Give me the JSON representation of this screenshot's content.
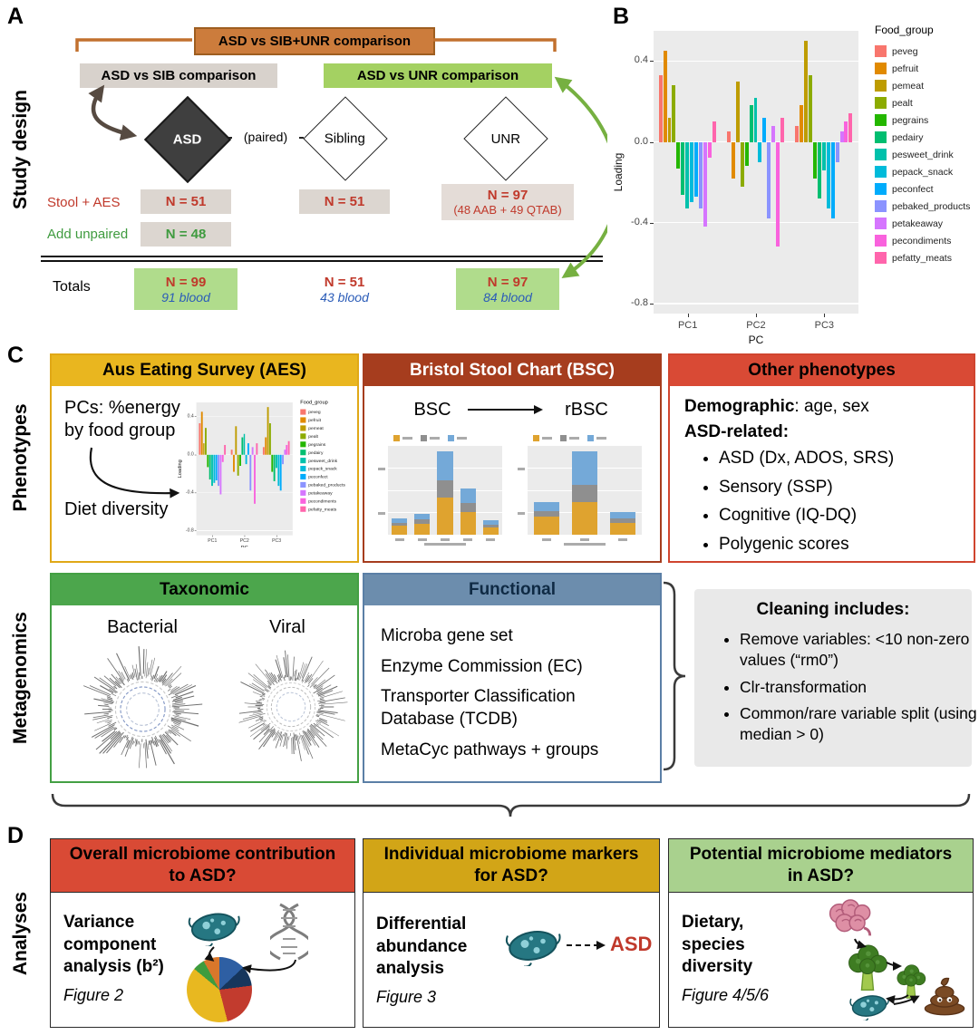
{
  "colors": {
    "red_accent": "#C0392B",
    "blue_accent": "#2B5CB8",
    "green_accent": "#3F9B3F",
    "orange_banner": "#CC7C3C",
    "gray_banner": "#D8D2CC",
    "green_banner": "#A4D162",
    "light_green_box": "#B0DC8C",
    "light_gray_box": "#DCD6D0",
    "aes_gold": "#E9B61F",
    "bsc_brick": "#A63D1E",
    "phenotype_red": "#D94A35",
    "taxonomic_green": "#4CA64C",
    "functional_blue": "#6C8DAD",
    "markers_gold": "#D2A517",
    "mediators_green": "#A9D18E"
  },
  "panelA": {
    "label": "A",
    "side_label": "Study design",
    "banner_top": "ASD vs SIB+UNR comparison",
    "banner_sib": "ASD vs SIB comparison",
    "banner_unr": "ASD vs UNR comparison",
    "node_asd": "ASD",
    "node_sib": "Sibling",
    "node_unr": "UNR",
    "paired": "(paired)",
    "row_stool": {
      "label": "Stool + AES",
      "asd": "N = 51",
      "sib": "N = 51",
      "unr_line1": "N = 97",
      "unr_line2": "(48 AAB + 49 QTAB)"
    },
    "row_unpaired": {
      "label": "Add unpaired",
      "asd": "N = 48"
    },
    "row_totals": {
      "label": "Totals",
      "asd_n": "N = 99",
      "asd_blood": "91 blood",
      "sib_n": "N = 51",
      "sib_blood": "43 blood",
      "unr_n": "N = 97",
      "unr_blood": "84 blood"
    }
  },
  "panelB": {
    "label": "B"
  },
  "panelC": {
    "label": "C",
    "side_label_top": "Phenotypes",
    "side_label_bottom": "Metagenomics",
    "aes": {
      "header": "Aus Eating Survey (AES)",
      "line1": "PCs: %energy by food group",
      "line2": "Diet diversity"
    },
    "bsc": {
      "header": "Bristol Stool Chart (BSC)",
      "left_label": "BSC",
      "right_label": "rBSC"
    },
    "other": {
      "header": "Other phenotypes",
      "demographic_bold": "Demographic",
      "demographic_rest": ": age, sex",
      "asd_related": "ASD-related:",
      "bullets": [
        "ASD (Dx, ADOS, SRS)",
        "Sensory (SSP)",
        "Cognitive (IQ-DQ)",
        "Polygenic scores"
      ]
    },
    "taxonomic": {
      "header": "Taxonomic",
      "left_label": "Bacterial",
      "right_label": "Viral"
    },
    "functional": {
      "header": "Functional",
      "lines": [
        "Microba gene set",
        "Enzyme Commission (EC)",
        "Transporter Classification Database (TCDB)",
        "MetaCyc pathways + groups"
      ]
    },
    "cleaning": {
      "title": "Cleaning includes:",
      "bullets": [
        "Remove variables: <10 non-zero values (“rm0”)",
        "Clr-transformation",
        "Common/rare variable split (using median > 0)"
      ]
    }
  },
  "panelD": {
    "label": "D",
    "side_label": "Analyses",
    "box1": {
      "header": "Overall microbiome contribution to ASD?",
      "body": "Variance component analysis (b²)",
      "figure": "Figure 2"
    },
    "box2": {
      "header": "Individual microbiome markers for ASD?",
      "body": "Differential abundance analysis",
      "figure": "Figure 3",
      "asd": "ASD"
    },
    "box3": {
      "header": "Potential microbiome mediators in ASD?",
      "body": "Dietary, species diversity",
      "figure": "Figure 4/5/6"
    }
  },
  "chart_data": [
    {
      "id": "food_group_loadings",
      "type": "bar",
      "title": "",
      "ylabel": "Loading",
      "xlabel": "PC",
      "categories": [
        "PC1",
        "PC2",
        "PC3"
      ],
      "ylim": [
        -0.85,
        0.55
      ],
      "yticks": [
        0.4,
        0.0,
        -0.4,
        -0.8
      ],
      "legend_title": "Food_group",
      "legend_position": "right",
      "plot_bg": "#EBEBEB",
      "series": [
        {
          "name": "peveg",
          "color": "#F8766D",
          "values": [
            0.33,
            0.05,
            0.08
          ]
        },
        {
          "name": "pefruit",
          "color": "#E18A00",
          "values": [
            0.45,
            -0.18,
            0.18
          ]
        },
        {
          "name": "pemeat",
          "color": "#BE9C00",
          "values": [
            0.12,
            0.3,
            0.5
          ]
        },
        {
          "name": "pealt",
          "color": "#8CAB00",
          "values": [
            0.28,
            -0.22,
            0.33
          ]
        },
        {
          "name": "pegrains",
          "color": "#24B700",
          "values": [
            -0.13,
            -0.12,
            -0.18
          ]
        },
        {
          "name": "pedairy",
          "color": "#00BE70",
          "values": [
            -0.26,
            0.18,
            -0.28
          ]
        },
        {
          "name": "pesweet_drink",
          "color": "#00C1AB",
          "values": [
            -0.33,
            0.22,
            -0.14
          ]
        },
        {
          "name": "pepack_snack",
          "color": "#00BBDA",
          "values": [
            -0.3,
            -0.1,
            -0.33
          ]
        },
        {
          "name": "peconfect",
          "color": "#00ACFC",
          "values": [
            -0.27,
            0.12,
            -0.38
          ]
        },
        {
          "name": "pebaked_products",
          "color": "#8B93FF",
          "values": [
            -0.33,
            -0.38,
            -0.1
          ]
        },
        {
          "name": "petakeaway",
          "color": "#D575FE",
          "values": [
            -0.42,
            0.08,
            0.05
          ]
        },
        {
          "name": "pecondiments",
          "color": "#F962DD",
          "values": [
            -0.08,
            -0.52,
            0.1
          ]
        },
        {
          "name": "pefatty_meats",
          "color": "#FF65AC",
          "values": [
            0.1,
            0.12,
            0.14
          ]
        }
      ]
    },
    {
      "id": "bsc",
      "type": "stacked_bar",
      "categories": [
        "",
        "",
        "",
        "",
        ""
      ],
      "series": [
        {
          "name": "orange",
          "color": "#DFA32F",
          "values": [
            0.1,
            0.12,
            0.42,
            0.26,
            0.08
          ]
        },
        {
          "name": "gray",
          "color": "#8F8F8F",
          "values": [
            0.03,
            0.05,
            0.2,
            0.1,
            0.03
          ]
        },
        {
          "name": "blue",
          "color": "#74A9D8",
          "values": [
            0.05,
            0.07,
            0.33,
            0.16,
            0.05
          ]
        }
      ]
    },
    {
      "id": "rbsc",
      "type": "stacked_bar",
      "categories": [
        "",
        "",
        ""
      ],
      "series": [
        {
          "name": "orange",
          "color": "#DFA32F",
          "values": [
            0.22,
            0.4,
            0.15
          ]
        },
        {
          "name": "gray",
          "color": "#8F8F8F",
          "values": [
            0.07,
            0.22,
            0.05
          ]
        },
        {
          "name": "blue",
          "color": "#74A9D8",
          "values": [
            0.12,
            0.42,
            0.08
          ]
        }
      ]
    }
  ]
}
